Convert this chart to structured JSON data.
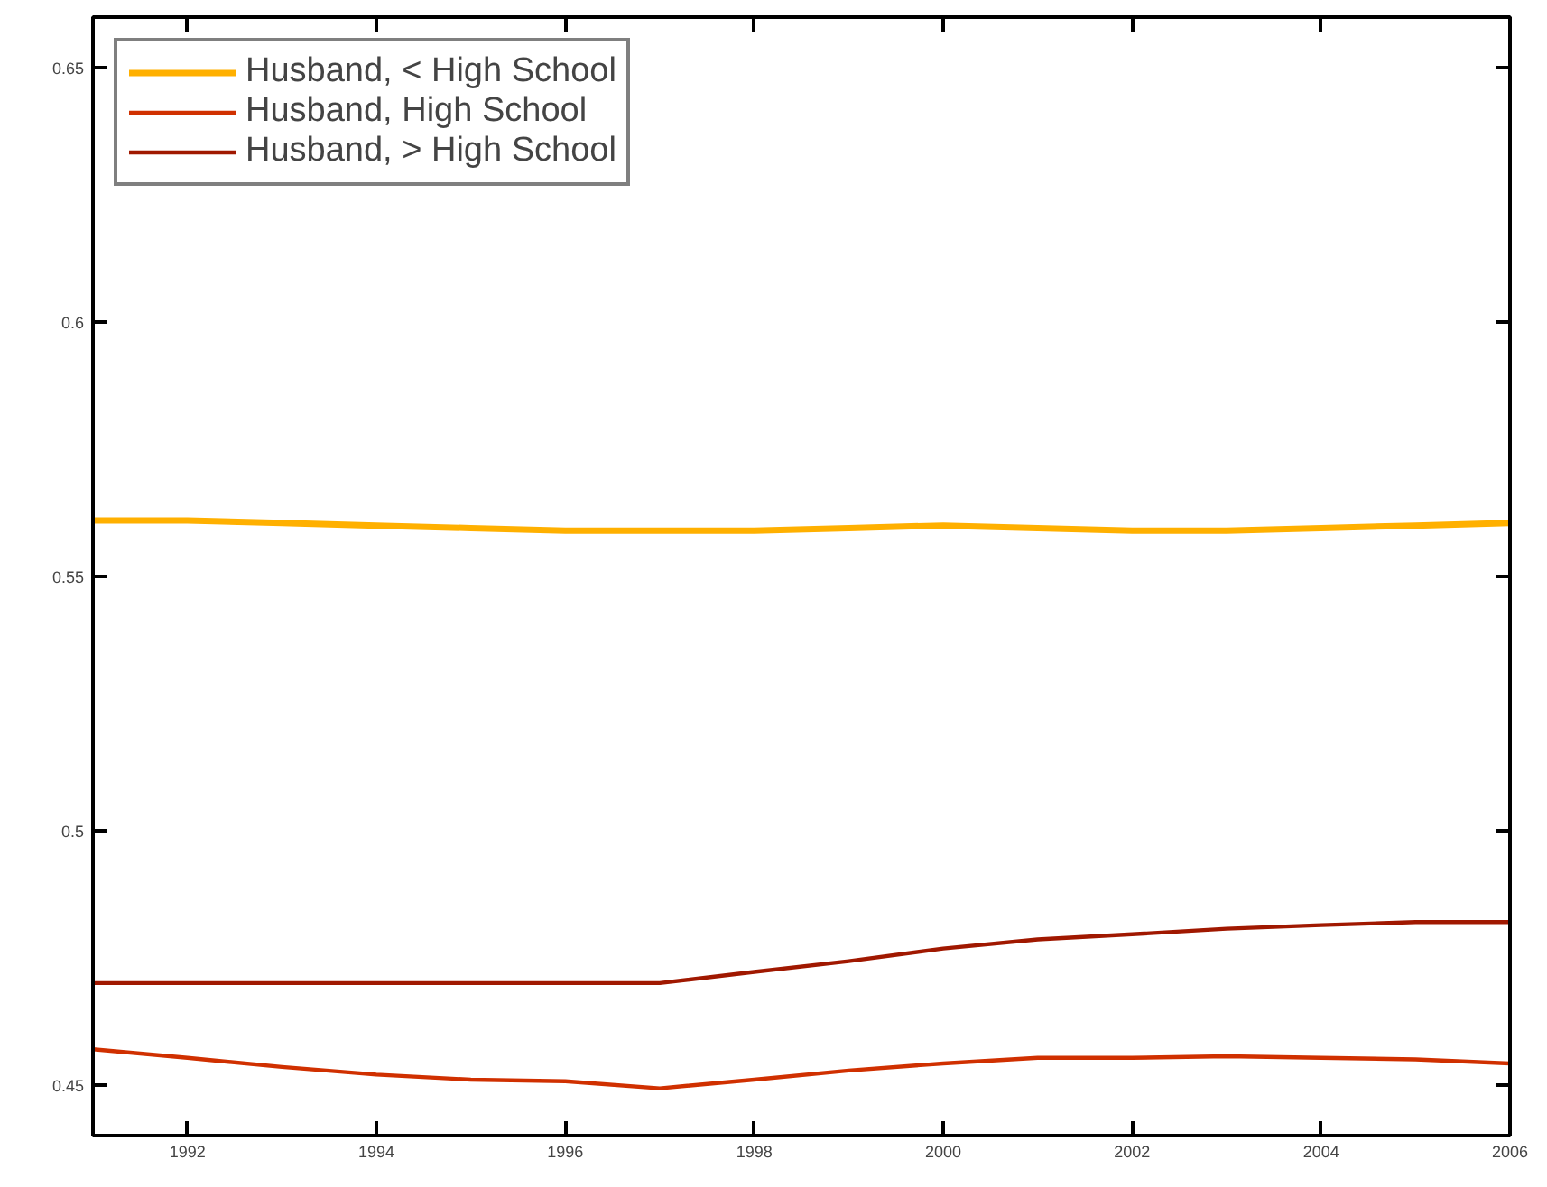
{
  "chart_data": {
    "type": "line",
    "x": [
      1991,
      1992,
      1993,
      1994,
      1995,
      1996,
      1997,
      1998,
      1999,
      2000,
      2001,
      2002,
      2003,
      2004,
      2005,
      2006
    ],
    "series": [
      {
        "name": "Husband, < High School",
        "color": "#ffb000",
        "values": [
          0.561,
          0.561,
          0.5605,
          0.56,
          0.5595,
          0.559,
          0.559,
          0.559,
          0.5595,
          0.56,
          0.5595,
          0.559,
          0.559,
          0.5595,
          0.56,
          0.5605
        ]
      },
      {
        "name": "Husband, High School",
        "color": "#d03000",
        "values": [
          0.457,
          0.4553,
          0.4535,
          0.452,
          0.451,
          0.4507,
          0.4493,
          0.451,
          0.4528,
          0.4542,
          0.4553,
          0.4553,
          0.4556,
          0.4553,
          0.455,
          0.4542
        ]
      },
      {
        "name": "Husband, > High School",
        "color": "#a01800",
        "values": [
          0.47,
          0.47,
          0.47,
          0.47,
          0.47,
          0.47,
          0.47,
          0.4722,
          0.4743,
          0.4768,
          0.4786,
          0.4796,
          0.4807,
          0.4814,
          0.482,
          0.482
        ]
      }
    ],
    "xlim": [
      1991,
      2006
    ],
    "ylim": [
      0.44,
      0.66
    ],
    "xticks": [
      1992,
      1994,
      1996,
      1998,
      2000,
      2002,
      2004,
      2006
    ],
    "yticks": [
      0.45,
      0.5,
      0.55,
      0.6,
      0.65
    ],
    "legend": "top left",
    "grid": false,
    "marker": "none",
    "line_style": "solid"
  }
}
